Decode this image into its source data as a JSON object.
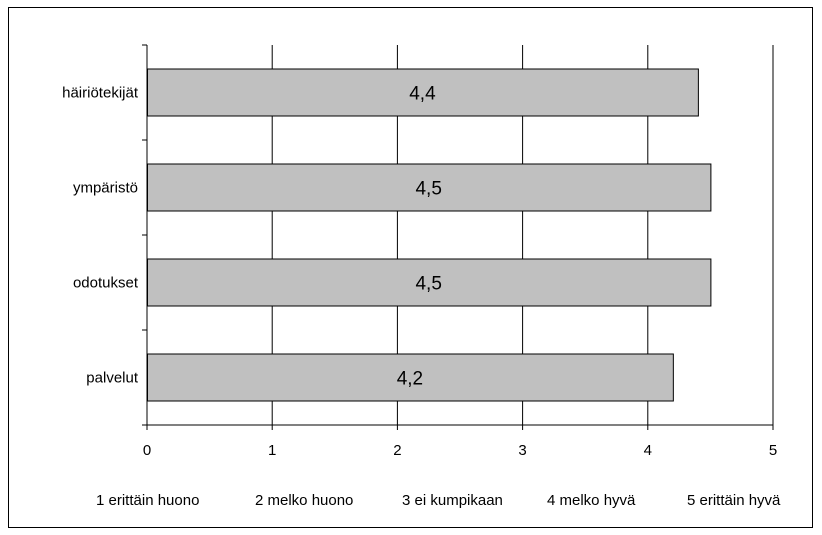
{
  "chart_data": {
    "type": "bar",
    "orientation": "horizontal",
    "categories": [
      "häiriötekijät",
      "ympäristö",
      "odotukset",
      "palvelut"
    ],
    "values": [
      4.4,
      4.5,
      4.5,
      4.2
    ],
    "data_labels": [
      "4,4",
      "4,5",
      "4,5",
      "4,2"
    ],
    "title": "",
    "xlabel": "",
    "ylabel": "",
    "xlim": [
      0,
      5
    ],
    "x_ticks": [
      "0",
      "1",
      "2",
      "3",
      "4",
      "5"
    ],
    "scale_legend": [
      "1 erittäin huono",
      "2 melko huono",
      "3 ei kumpikaan",
      "4 melko hyvä",
      "5 erittäin hyvä"
    ],
    "grid": "vertical",
    "legend": "none",
    "colors": {
      "bar_fill": "#c0c0c0",
      "bar_stroke": "#000000",
      "grid": "#000000",
      "background": "#ffffff"
    }
  }
}
